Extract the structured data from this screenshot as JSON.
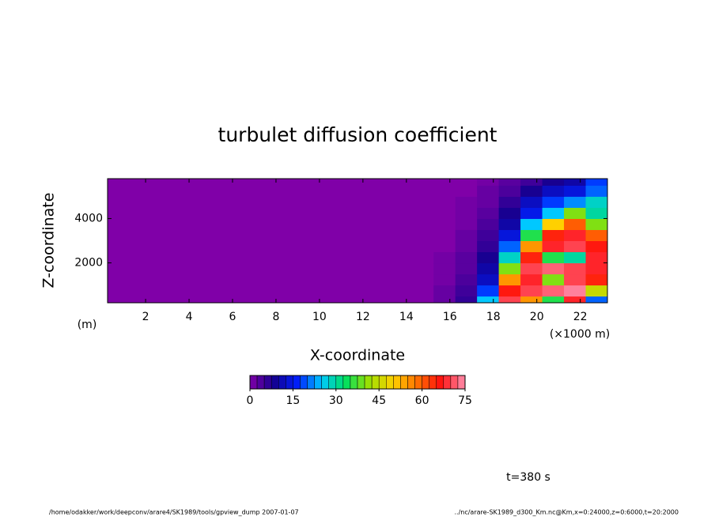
{
  "chart_data": {
    "type": "contour",
    "title": "turbulet diffusion coefficient",
    "x_label": "X-coordinate",
    "y_label": "Z-coordinate",
    "y_unit": "(m)",
    "x_unit": "(×1000 m)",
    "time_label": "t=380 s",
    "footer_left": "/home/odakker/work/deepconv/arare4/SK1989/tools/gpview_dump  2007-01-07",
    "footer_right": "../nc/arare-SK1989_d300_Km.nc@Km,x=0:24000,z=0:6000,t=20:2000",
    "xlim": [
      0.25,
      23.25
    ],
    "ylim": [
      200,
      5800
    ],
    "xticks": [
      2,
      4,
      6,
      8,
      10,
      12,
      14,
      16,
      18,
      20,
      22
    ],
    "yticks": [
      2000,
      4000
    ],
    "x": [
      0.75,
      1.75,
      2.75,
      3.75,
      4.75,
      5.75,
      6.75,
      7.75,
      8.75,
      9.75,
      10.75,
      11.75,
      12.75,
      13.75,
      14.75,
      15.75,
      16.75,
      17.75,
      18.75,
      19.75,
      20.75,
      21.75,
      22.75
    ],
    "z": [
      250,
      750,
      1250,
      1750,
      2250,
      2750,
      3250,
      3750,
      4250,
      4750,
      5250,
      5750
    ],
    "values": [
      [
        0,
        0,
        0,
        0,
        0,
        0,
        0,
        0,
        0,
        0,
        0,
        0,
        0,
        0,
        0,
        2,
        6,
        25,
        70,
        55,
        35,
        68,
        20
      ],
      [
        0,
        0,
        0,
        0,
        0,
        0,
        0,
        0,
        0,
        0,
        0,
        0,
        0,
        0,
        0,
        2,
        5,
        18,
        66,
        70,
        72,
        74,
        45
      ],
      [
        0,
        0,
        0,
        0,
        0,
        0,
        0,
        0,
        0,
        0,
        0,
        0,
        0,
        0,
        0,
        1,
        4,
        12,
        55,
        68,
        40,
        70,
        65
      ],
      [
        0,
        0,
        0,
        0,
        0,
        0,
        0,
        0,
        0,
        0,
        0,
        0,
        0,
        0,
        0,
        1,
        3,
        10,
        40,
        70,
        72,
        70,
        68
      ],
      [
        0,
        0,
        0,
        0,
        0,
        0,
        0,
        0,
        0,
        0,
        0,
        0,
        0,
        0,
        0,
        1,
        3,
        8,
        28,
        65,
        35,
        30,
        68
      ],
      [
        0,
        0,
        0,
        0,
        0,
        0,
        0,
        0,
        0,
        0,
        0,
        0,
        0,
        0,
        0,
        0,
        2,
        6,
        20,
        55,
        68,
        70,
        66
      ],
      [
        0,
        0,
        0,
        0,
        0,
        0,
        0,
        0,
        0,
        0,
        0,
        0,
        0,
        0,
        0,
        0,
        2,
        5,
        14,
        35,
        65,
        68,
        60
      ],
      [
        0,
        0,
        0,
        0,
        0,
        0,
        0,
        0,
        0,
        0,
        0,
        0,
        0,
        0,
        0,
        0,
        1,
        4,
        10,
        25,
        50,
        60,
        40
      ],
      [
        0,
        0,
        0,
        0,
        0,
        0,
        0,
        0,
        0,
        0,
        0,
        0,
        0,
        0,
        0,
        0,
        1,
        3,
        8,
        15,
        25,
        40,
        30
      ],
      [
        0,
        0,
        0,
        0,
        0,
        0,
        0,
        0,
        0,
        0,
        0,
        0,
        0,
        0,
        0,
        0,
        1,
        2,
        6,
        12,
        18,
        22,
        28
      ],
      [
        0,
        0,
        0,
        0,
        0,
        0,
        0,
        0,
        0,
        0,
        0,
        0,
        0,
        0,
        0,
        0,
        0,
        2,
        4,
        8,
        12,
        14,
        20
      ],
      [
        0,
        0,
        0,
        0,
        0,
        0,
        0,
        0,
        0,
        0,
        0,
        0,
        0,
        0,
        0,
        0,
        0,
        1,
        3,
        5,
        8,
        10,
        18
      ]
    ],
    "clim": [
      0,
      75
    ],
    "cticks": [
      0,
      15,
      30,
      45,
      60,
      75
    ],
    "colors": [
      "#8000a8",
      "#140090",
      "#0020ff",
      "#00c8ff",
      "#00e060",
      "#a0e000",
      "#ffd000",
      "#ff7000",
      "#ff1010",
      "#ff90b0"
    ]
  }
}
